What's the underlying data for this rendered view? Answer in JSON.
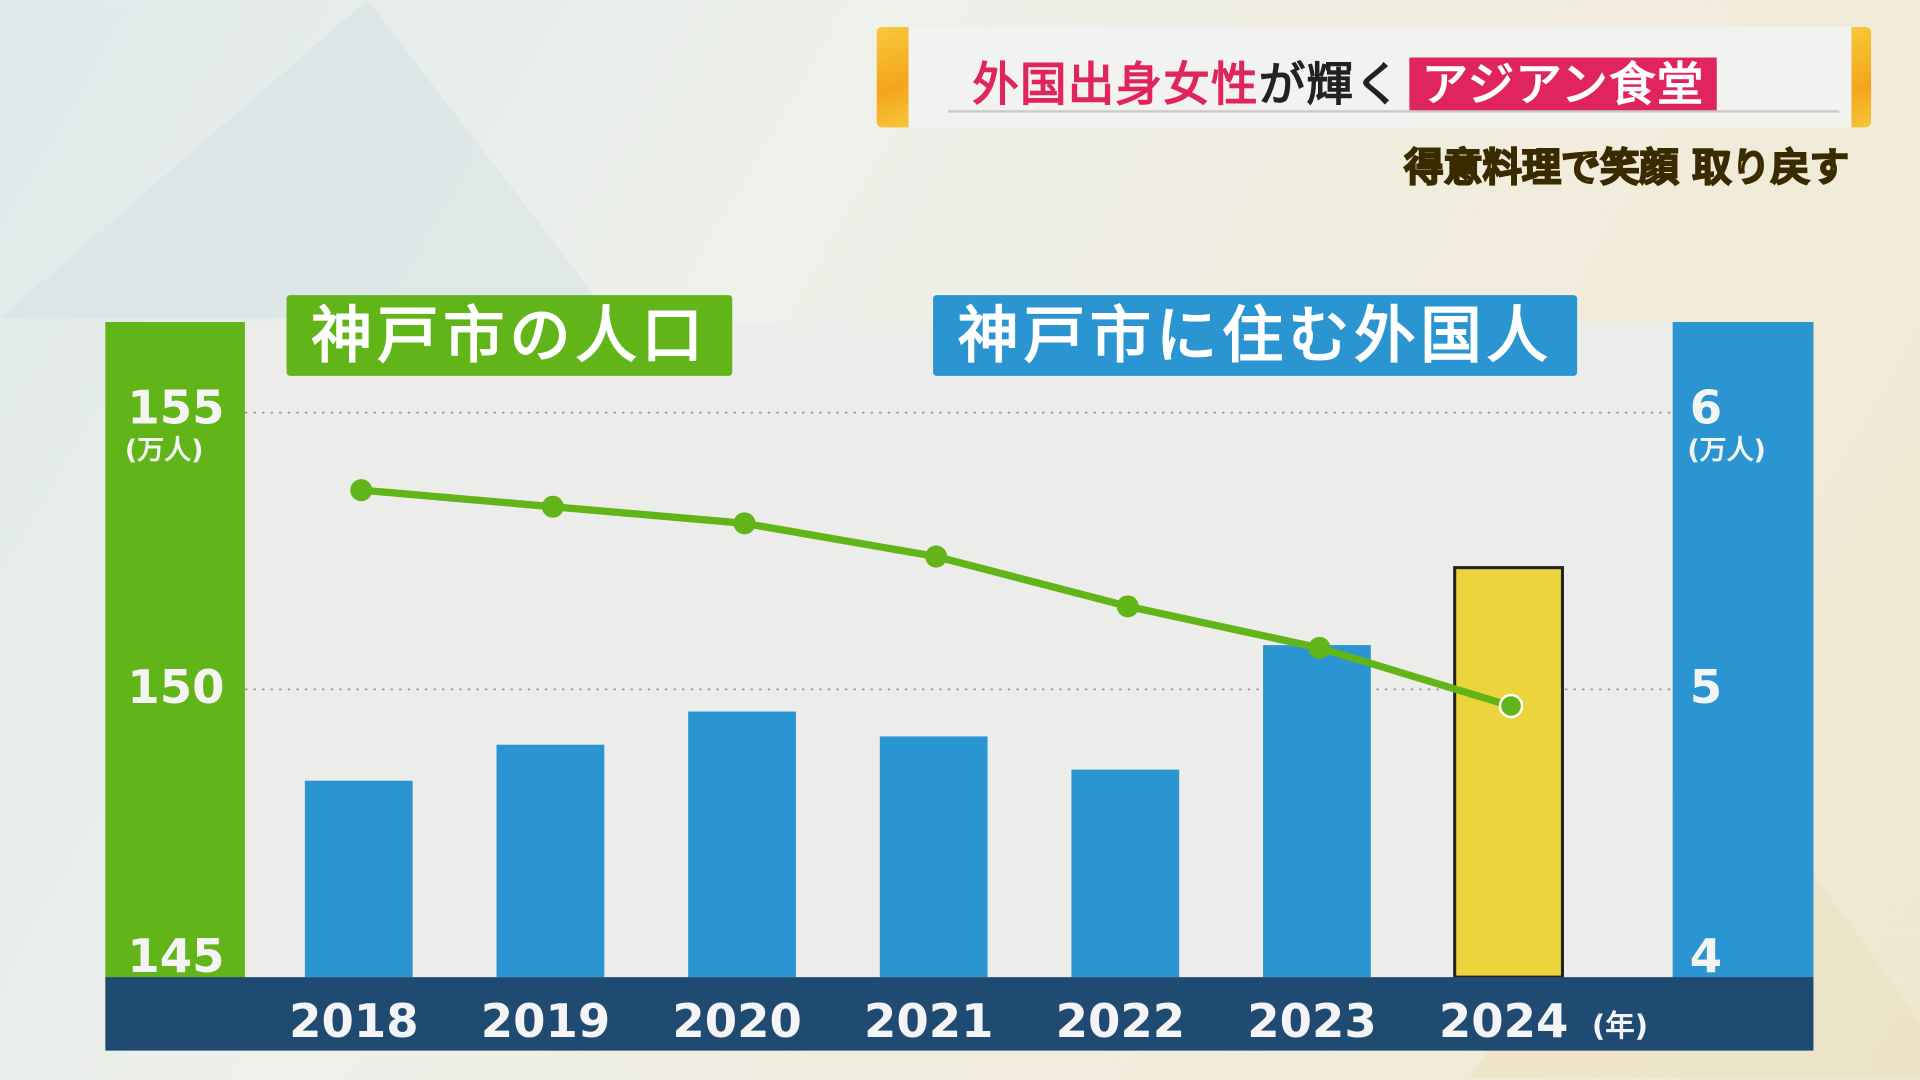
{
  "header": {
    "title_red": "外国出身女性",
    "title_dark": "が輝く",
    "title_box": "アジアン食堂",
    "subtitle": "得意料理で笑顔 取り戻す"
  },
  "chart_data": {
    "type": "bar+line",
    "categories": [
      "2018",
      "2019",
      "2020",
      "2021",
      "2022",
      "2023",
      "2024"
    ],
    "x_unit": "(年)",
    "series": [
      {
        "name": "神戸市の人口",
        "type": "line",
        "axis": "left",
        "color": "#62b518",
        "values": [
          153.6,
          153.3,
          153.0,
          152.4,
          151.5,
          150.75,
          149.7
        ]
      },
      {
        "name": "神戸市に住む外国人",
        "type": "bar",
        "axis": "right",
        "color": "#2a95d0",
        "highlight_color": "#ecd43c",
        "highlight_index": 6,
        "values": [
          4.67,
          4.8,
          4.92,
          4.83,
          4.71,
          5.16,
          5.44
        ]
      }
    ],
    "left_axis": {
      "ticks": [
        "155",
        "150",
        "145"
      ],
      "unit": "(万人)",
      "ylim": [
        145,
        155
      ]
    },
    "right_axis": {
      "ticks": [
        "6",
        "5",
        "4"
      ],
      "unit": "(万人)",
      "ylim": [
        4,
        6
      ]
    },
    "gridlines_at_left": [
      155,
      150
    ],
    "legend_left": "神戸市の人口",
    "legend_right": "神戸市に住む外国人"
  }
}
